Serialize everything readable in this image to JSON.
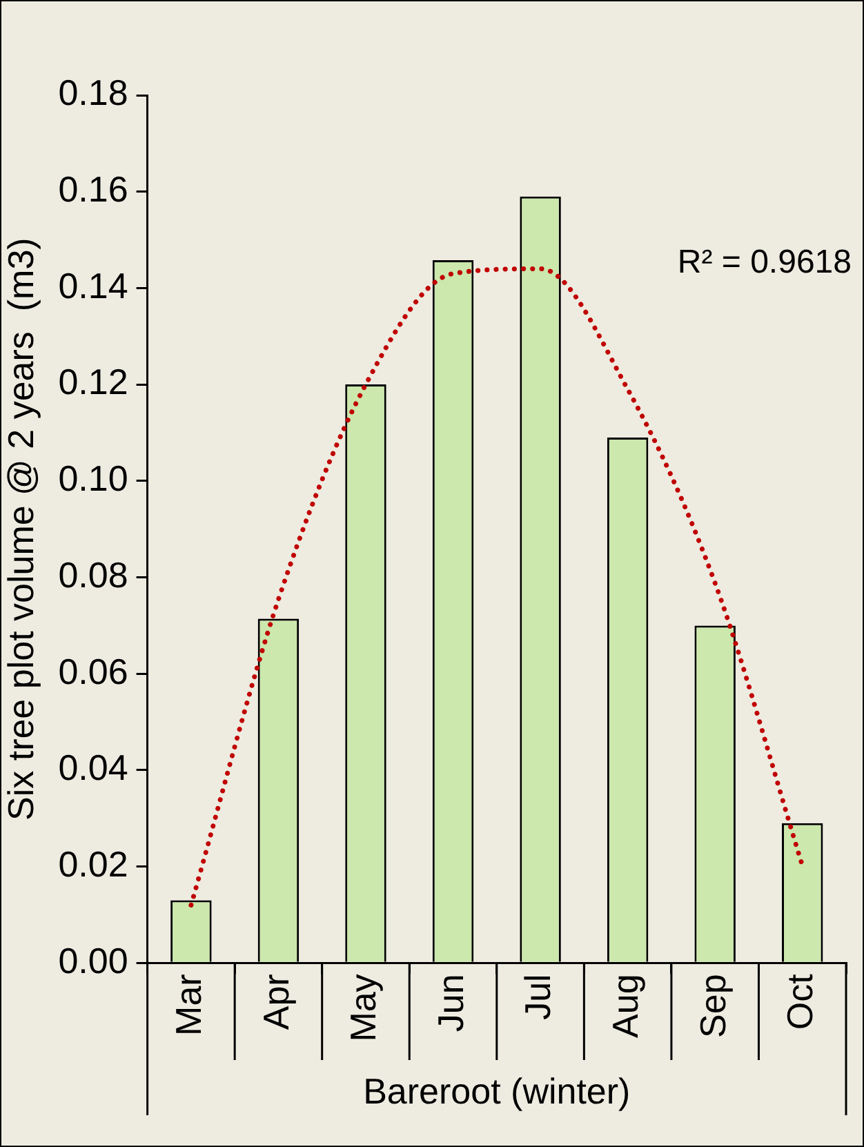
{
  "chart_data": {
    "type": "bar",
    "ylabel": "Six tree plot volume @ 2 years  (m3)",
    "xlabel": "Bareroot (winter)",
    "categories": [
      "Mar",
      "Apr",
      "May",
      "Jun",
      "Jul",
      "Aug",
      "Sep",
      "Oct"
    ],
    "series": [
      {
        "color": "#cce8ad",
        "values": [
          0.013,
          0.0714,
          0.12,
          0.1458,
          0.159,
          0.109,
          0.07,
          0.029
        ]
      },
      {
        "type": "line",
        "color": "#c00000",
        "line_style": "dotted",
        "marker": "none",
        "values": [
          0.012,
          0.0754,
          0.12,
          0.143,
          0.144,
          0.119,
          0.0788,
          0.0202
        ]
      }
    ],
    "ylim": [
      0,
      0.18
    ],
    "yticks": [
      {
        "value": 0,
        "label": "0.00"
      },
      {
        "value": 0.02,
        "label": "0.02"
      },
      {
        "value": 0.04,
        "label": "0.04"
      },
      {
        "value": 0.06,
        "label": "0.06"
      },
      {
        "value": 0.08,
        "label": "0.08"
      },
      {
        "value": 0.1,
        "label": "0.10"
      },
      {
        "value": 0.12,
        "label": "0.12"
      },
      {
        "value": 0.14,
        "label": "0.14"
      },
      {
        "value": 0.16,
        "label": "0.16"
      },
      {
        "value": 0.18,
        "label": "0.18"
      }
    ],
    "grid": false,
    "legend": false,
    "annotations": [
      "R² = 0.9618"
    ]
  }
}
